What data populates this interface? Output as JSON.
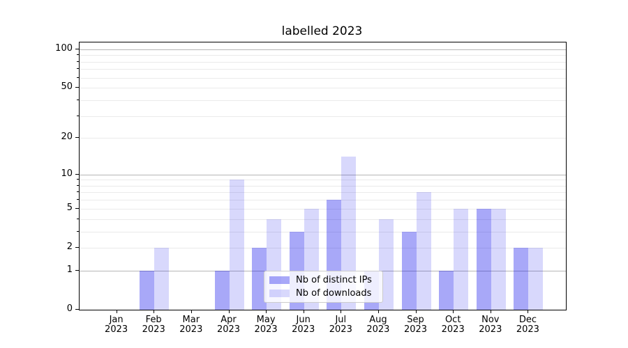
{
  "title": "labelled 2023",
  "chart_data": {
    "type": "bar",
    "title": "labelled 2023",
    "year": "2023",
    "categories": [
      "Jan",
      "Feb",
      "Mar",
      "Apr",
      "May",
      "Jun",
      "Jul",
      "Aug",
      "Sep",
      "Oct",
      "Nov",
      "Dec"
    ],
    "series": [
      {
        "name": "Nb of distinct IPs",
        "color": "rgba(15,15,235,0.36)",
        "values": [
          0,
          1,
          0,
          1,
          2,
          3,
          6,
          1,
          3,
          1,
          5,
          2
        ]
      },
      {
        "name": "Nb of downloads",
        "color": "rgba(15,15,235,0.16)",
        "values": [
          0,
          2,
          0,
          9,
          4,
          5,
          14,
          4,
          7,
          5,
          5,
          2
        ]
      }
    ],
    "yscale": "log1p",
    "ylim": [
      0,
      113
    ],
    "y_labeled_ticks": [
      0,
      1,
      2,
      5,
      10,
      20,
      50,
      100
    ],
    "y_major_gridlines": [
      1,
      10,
      100
    ],
    "y_minor_gridlines": [
      2,
      3,
      4,
      5,
      6,
      7,
      8,
      9,
      20,
      30,
      40,
      50,
      60,
      70,
      80,
      90
    ],
    "grid": true,
    "legend_position": "lower center",
    "xlabel": "",
    "ylabel": ""
  },
  "colors": {
    "spine": "#000000",
    "major_grid": "#b5b5b5",
    "minor_grid": "#eaeaea",
    "legend_border": "#cccccc",
    "legend_bg": "rgba(255,255,255,0.8)",
    "text": "#000000"
  }
}
